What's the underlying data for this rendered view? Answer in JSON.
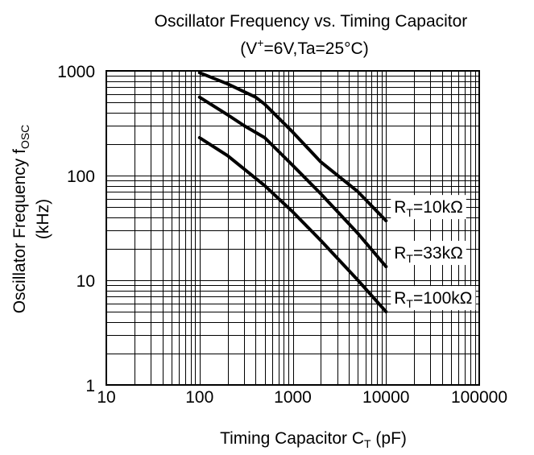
{
  "chart_data": {
    "type": "line",
    "title": "Oscillator Frequency vs. Timing Capacitor",
    "subtitle": {
      "prefix": "(V",
      "sup": "+",
      "rest": "=6V,Ta=25°C)"
    },
    "xlabel": {
      "main": "Timing Capacitor  C",
      "sub": "T",
      "unit": "  (pF)"
    },
    "ylabel": {
      "main": "Oscillator Frequency  f",
      "sub": "OSC",
      "unit": "(kHz)"
    },
    "x_scale": "log",
    "y_scale": "log",
    "xlim": [
      10,
      100000
    ],
    "ylim": [
      1,
      1000
    ],
    "x_ticks": [
      10,
      100,
      1000,
      10000,
      100000
    ],
    "x_tick_labels": [
      "10",
      "100",
      "1000",
      "10000",
      "100000"
    ],
    "y_ticks": [
      1,
      10,
      100,
      1000
    ],
    "y_tick_labels": [
      "1",
      "10",
      "100",
      "1000"
    ],
    "grid": true,
    "series": [
      {
        "name": "RT=10kΩ",
        "label": {
          "main": "R",
          "sub": "T",
          "rest": "=10kΩ"
        },
        "x": [
          100,
          200,
          400,
          500,
          1000,
          2000,
          5000,
          10000
        ],
        "y": [
          960,
          750,
          560,
          480,
          260,
          135,
          70,
          37
        ]
      },
      {
        "name": "RT=33kΩ",
        "label": {
          "main": "R",
          "sub": "T",
          "rest": "=33kΩ"
        },
        "x": [
          100,
          200,
          300,
          500,
          1000,
          2000,
          5000,
          10000
        ],
        "y": [
          560,
          380,
          300,
          230,
          125,
          67,
          28,
          13.5
        ]
      },
      {
        "name": "RT=100kΩ",
        "label": {
          "main": "R",
          "sub": "T",
          "rest": "=100kΩ"
        },
        "x": [
          100,
          200,
          500,
          1000,
          2000,
          5000,
          10000
        ],
        "y": [
          230,
          155,
          80,
          45,
          24,
          10,
          5
        ]
      }
    ]
  }
}
